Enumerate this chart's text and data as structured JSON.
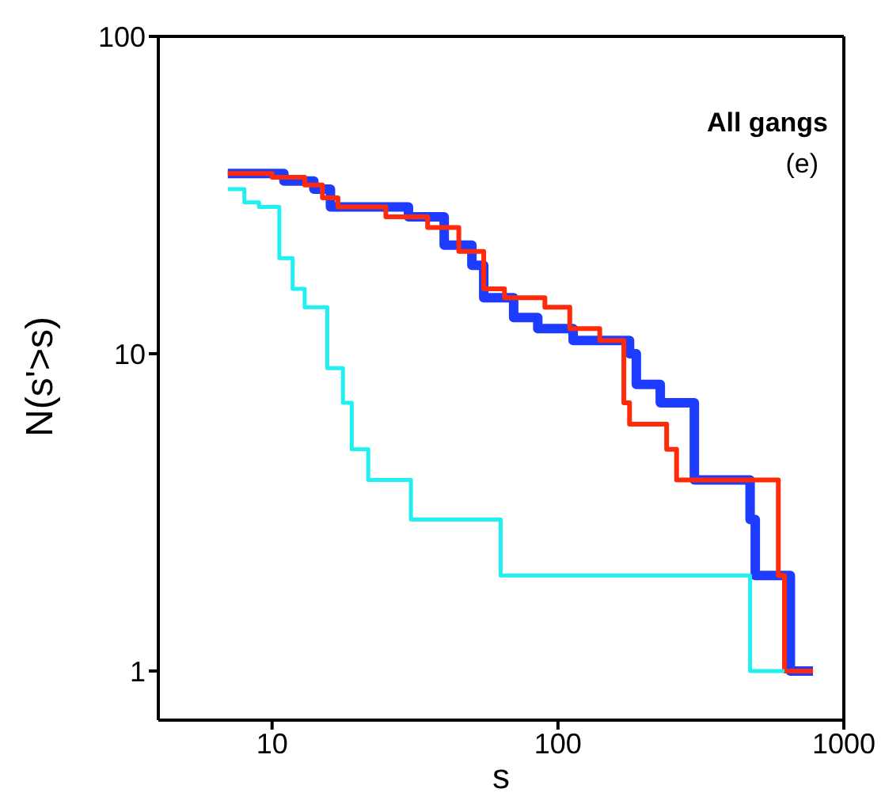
{
  "chart_data": {
    "type": "step",
    "xlabel": "s",
    "ylabel": "N(s'>s)",
    "log": "xy",
    "xlim": [
      4,
      1000
    ],
    "ylim": [
      0.7,
      100
    ],
    "xticks": [
      10,
      100,
      1000
    ],
    "yticks": [
      1,
      10,
      100
    ],
    "annotations": [
      "All gangs",
      "(e)"
    ],
    "series": [
      {
        "color": "#1e3cff",
        "x": [
          7,
          11,
          14,
          16,
          30,
          40,
          50,
          55,
          70,
          85,
          113,
          178,
          188,
          228,
          300,
          470,
          490,
          650,
          780
        ],
        "values": [
          37,
          35,
          33,
          29,
          27,
          22,
          19,
          15,
          13,
          12,
          11,
          10,
          8,
          7,
          4,
          3,
          2,
          1,
          1
        ]
      },
      {
        "color": "#ff2a0a",
        "x": [
          7,
          10,
          13,
          15,
          17,
          25,
          35,
          45,
          55,
          65,
          90,
          110,
          140,
          170,
          178,
          240,
          260,
          590,
          620,
          780
        ],
        "values": [
          37,
          36,
          34,
          31,
          29,
          27,
          25,
          21,
          16,
          15,
          14,
          12,
          11,
          7,
          6,
          5,
          4,
          2,
          1,
          1
        ]
      },
      {
        "color": "#22f0f0",
        "x": [
          7,
          8,
          9,
          10.6,
          11.8,
          13,
          15.6,
          17.7,
          19,
          21.7,
          30.6,
          63,
          470,
          620
        ],
        "values": [
          33,
          30,
          29,
          20,
          16,
          14,
          9,
          7,
          5,
          4,
          3,
          2,
          1,
          1
        ]
      }
    ]
  }
}
